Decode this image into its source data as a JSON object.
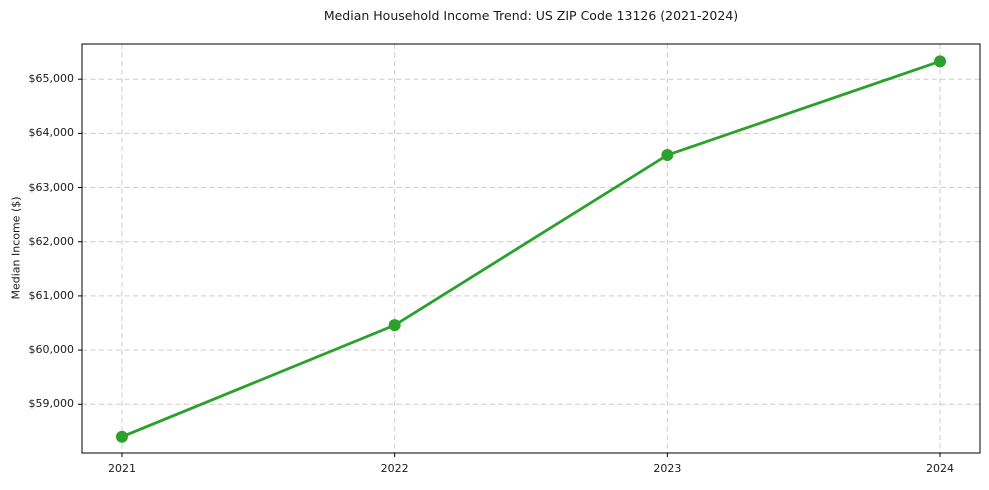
{
  "chart_data": {
    "type": "line",
    "title": "Median Household Income Trend: US ZIP Code 13126 (2021-2024)",
    "xlabel": "",
    "ylabel": "Median Income ($)",
    "categories": [
      "2021",
      "2022",
      "2023",
      "2024"
    ],
    "series": [
      {
        "name": "Median Household Income",
        "values": [
          58400,
          60460,
          63600,
          65330
        ]
      }
    ],
    "yticks": [
      {
        "value": 59000,
        "label": "$59,000"
      },
      {
        "value": 60000,
        "label": "$60,000"
      },
      {
        "value": 61000,
        "label": "$61,000"
      },
      {
        "value": 62000,
        "label": "$62,000"
      },
      {
        "value": 63000,
        "label": "$63,000"
      },
      {
        "value": 64000,
        "label": "$64,000"
      },
      {
        "value": 65000,
        "label": "$65,000"
      }
    ],
    "ylim": [
      58100,
      65650
    ],
    "grid": "dashed",
    "legend": "none",
    "line_color": "#2ca02c",
    "marker": "circle",
    "grid_color": "#cccccc",
    "axis_color": "#000000",
    "text_color": "#1a1a1a"
  }
}
